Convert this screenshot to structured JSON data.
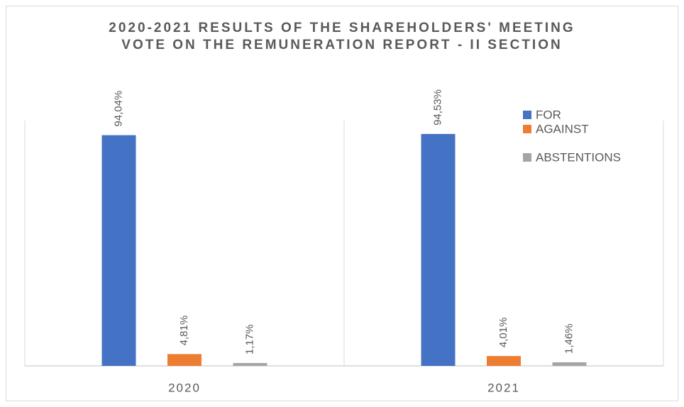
{
  "chart_data": {
    "type": "bar",
    "title": [
      "2020-2021  RESULTS OF THE SHAREHOLDERS' MEETING",
      "VOTE ON THE REMUNERATION REPORT - II SECTION"
    ],
    "categories": [
      "2020",
      "2021"
    ],
    "series": [
      {
        "name": "FOR",
        "color": "#4472c4",
        "values": [
          94.04,
          94.53
        ],
        "value_labels": [
          "94,04%",
          "94,53%"
        ]
      },
      {
        "name": "AGAINST",
        "color": "#ed7d31",
        "values": [
          4.81,
          4.01
        ],
        "value_labels": [
          "4,81%",
          "4,01%"
        ]
      },
      {
        "name": "ABSTENTIONS",
        "color": "#a5a5a5",
        "values": [
          1.17,
          1.46
        ],
        "value_labels": [
          "1,17%",
          "1,46%"
        ]
      }
    ],
    "ylim": [
      0,
      100
    ],
    "legend": "right"
  }
}
